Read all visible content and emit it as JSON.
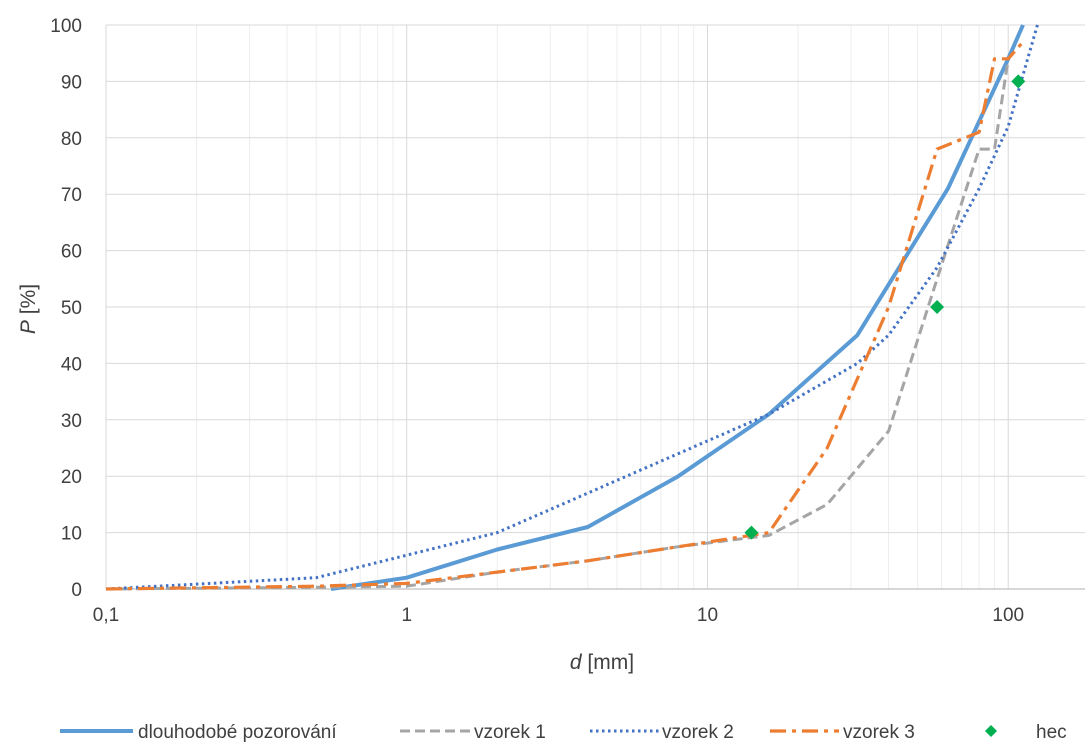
{
  "chart_data": {
    "type": "line",
    "xscale": "log",
    "xlim": [
      0.1,
      180
    ],
    "ylim": [
      0,
      100
    ],
    "ystep": 10,
    "grid": {
      "x_major": true,
      "x_minor": true,
      "y_major": true
    },
    "xticks": [
      0.1,
      1,
      10,
      100
    ],
    "xtick_labels": [
      "0,1",
      "1",
      "10",
      "100"
    ],
    "yticks": [
      0,
      10,
      20,
      30,
      40,
      50,
      60,
      70,
      80,
      90,
      100
    ],
    "ytick_labels": [
      "0",
      "10",
      "20",
      "30",
      "40",
      "50",
      "60",
      "70",
      "80",
      "90",
      "100"
    ],
    "xlabel_italic": "d",
    "xlabel_rest": " [mm]",
    "ylabel_italic": "P",
    "ylabel_rest": " [%]",
    "legend_position": "bottom",
    "series": [
      {
        "name": "dlouhodobé pozorování",
        "color": "#5b9bd5",
        "style": "solid",
        "marker": "none",
        "x": [
          0.56,
          1,
          2,
          4,
          8,
          16,
          31.5,
          63,
          100,
          112
        ],
        "y": [
          0,
          2,
          7,
          11,
          20,
          31,
          45,
          71,
          94,
          100
        ]
      },
      {
        "name": "vzorek 1",
        "color": "#a5a5a5",
        "style": "dashed",
        "marker": "none",
        "x": [
          0.1,
          0.5,
          1,
          2,
          4,
          8,
          16,
          25,
          40,
          58,
          80,
          90,
          100
        ],
        "y": [
          0,
          0.3,
          0.5,
          3,
          5,
          7.5,
          9.5,
          15,
          28,
          55,
          78,
          78,
          94
        ]
      },
      {
        "name": "vzorek 2",
        "color": "#4472c4",
        "style": "dotted",
        "marker": "none",
        "x": [
          0.1,
          0.5,
          1,
          2,
          4,
          8,
          16,
          31.5,
          40,
          58,
          80,
          100,
          125
        ],
        "y": [
          0,
          2,
          6,
          10,
          17,
          24,
          31,
          40,
          45,
          57,
          71,
          82,
          100
        ]
      },
      {
        "name": "vzorek 3",
        "color": "#ed7d31",
        "style": "dashdot",
        "marker": "none",
        "x": [
          0.1,
          0.5,
          1,
          2,
          4,
          8,
          16,
          25,
          40,
          58,
          80,
          90,
          100,
          112
        ],
        "y": [
          0,
          0.5,
          1,
          3,
          5,
          7.5,
          10,
          25,
          50,
          78,
          81,
          94,
          94,
          97
        ]
      },
      {
        "name": "hec",
        "color": "#00b050",
        "style": "none",
        "marker": "diamond",
        "x": [
          14,
          58,
          108
        ],
        "y": [
          10,
          50,
          90
        ]
      }
    ]
  }
}
